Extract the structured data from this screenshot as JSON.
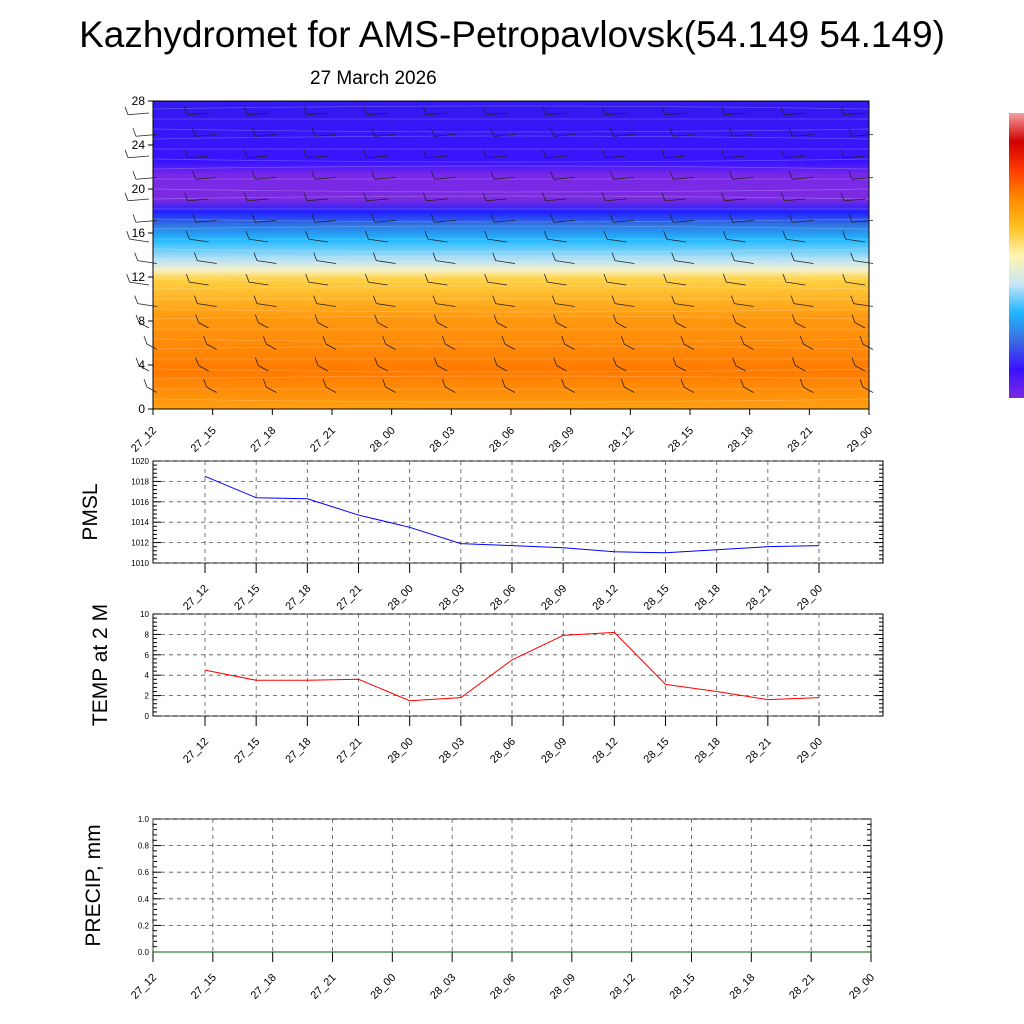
{
  "title": "Kazhydromet for AMS-Petropavlovsk(54.149 54.149)",
  "subtitle": "27 March 2026",
  "chart_data": [
    {
      "type": "heatmap",
      "name": "cross-section",
      "ylim": [
        0,
        28
      ],
      "yticks": [
        "0",
        "4",
        "8",
        "12",
        "16",
        "20",
        "24",
        "28"
      ],
      "xticks": [
        "27_12",
        "27_15",
        "27_18",
        "27_21",
        "28_00",
        "28_03",
        "28_06",
        "28_09",
        "28_12",
        "28_15",
        "28_18",
        "28_21",
        "29_00"
      ],
      "colorbar": [
        "#7b2be0",
        "#3a10ff",
        "#3b6be0",
        "#1fb6ff",
        "#c8e6f5",
        "#fff5b0",
        "#ffc020",
        "#ff8a00",
        "#ff3a00",
        "#d00000",
        "#f4a0a0"
      ]
    },
    {
      "type": "line",
      "ylabel": "PMSL",
      "ylim": [
        1010,
        1020
      ],
      "yticks": [
        "1010",
        "1012",
        "1014",
        "1016",
        "1018",
        "1020"
      ],
      "x": [
        "27_12",
        "27_15",
        "27_18",
        "27_21",
        "28_00",
        "28_03",
        "28_06",
        "28_09",
        "28_12",
        "28_15",
        "28_18",
        "28_21",
        "29_00"
      ],
      "values": [
        1018.5,
        1016.4,
        1016.3,
        1014.7,
        1013.5,
        1011.9,
        1011.7,
        1011.5,
        1011.1,
        1011.0,
        1011.3,
        1011.6,
        1011.7
      ],
      "color": "#0000ff"
    },
    {
      "type": "line",
      "ylabel": "TEMP at 2 M",
      "ylim": [
        0,
        10
      ],
      "yticks": [
        "0",
        "2",
        "4",
        "6",
        "8",
        "10"
      ],
      "x": [
        "27_12",
        "27_15",
        "27_18",
        "27_21",
        "28_00",
        "28_03",
        "28_06",
        "28_09",
        "28_12",
        "28_15",
        "28_18",
        "28_21",
        "29_00"
      ],
      "values": [
        4.5,
        3.5,
        3.5,
        3.6,
        1.5,
        1.8,
        5.5,
        7.9,
        8.2,
        3.1,
        2.4,
        1.6,
        1.8
      ],
      "color": "#ff0000"
    },
    {
      "type": "line",
      "ylabel": "PRECIP, mm",
      "ylim": [
        0,
        1
      ],
      "yticks": [
        "0.0",
        "0.2",
        "0.4",
        "0.6",
        "0.8",
        "1.0"
      ],
      "x": [
        "27_12",
        "27_15",
        "27_18",
        "27_21",
        "28_00",
        "28_03",
        "28_06",
        "28_09",
        "28_12",
        "28_15",
        "28_18",
        "28_21",
        "29_00"
      ],
      "values": [
        0,
        0,
        0,
        0,
        0,
        0,
        0,
        0,
        0,
        0,
        0,
        0,
        0
      ],
      "color": "#006400"
    }
  ]
}
